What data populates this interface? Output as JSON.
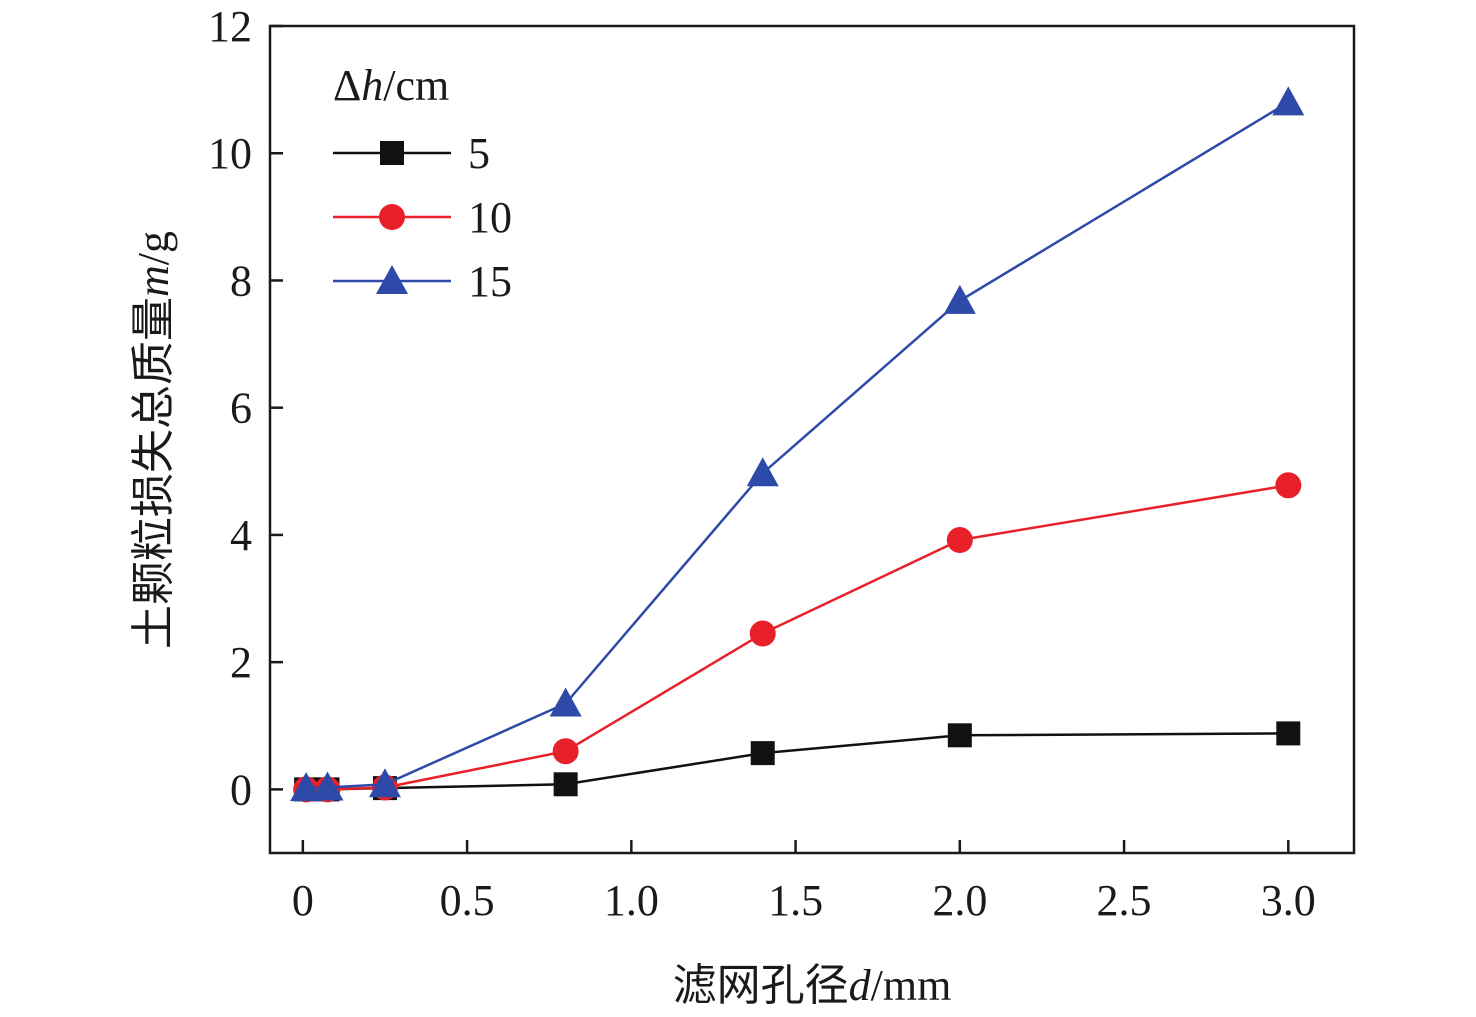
{
  "chart_data": {
    "type": "line",
    "title": "",
    "xlabel_prefix": "滤网孔径",
    "xlabel_var": "d",
    "xlabel_unit": "/mm",
    "ylabel_prefix": "土颗粒损失总质量",
    "ylabel_var": "m",
    "ylabel_unit": "/g",
    "xlim": [
      -0.1,
      3.2
    ],
    "ylim": [
      -1,
      12
    ],
    "xticks": [
      0,
      0.5,
      1.0,
      1.5,
      2.0,
      2.5,
      3.0
    ],
    "xtick_labels": [
      "0",
      "0.5",
      "1.0",
      "1.5",
      "2.0",
      "2.5",
      "3.0"
    ],
    "yticks": [
      0,
      2,
      4,
      6,
      8,
      10,
      12
    ],
    "ytick_labels": [
      "0",
      "2",
      "4",
      "6",
      "8",
      "10",
      "12"
    ],
    "grid": false,
    "legend_position": "top-left",
    "legend_title_delta": "Δ",
    "legend_title_var": "h",
    "legend_title_unit": "/cm",
    "x": [
      0.01,
      0.075,
      0.25,
      0.8,
      1.4,
      2.0,
      3.0
    ],
    "series": [
      {
        "name": "5",
        "marker": "square",
        "color": "#111111",
        "values": [
          0.0,
          0.0,
          0.02,
          0.08,
          0.57,
          0.85,
          0.88
        ]
      },
      {
        "name": "10",
        "marker": "circle",
        "color": "#e8202a",
        "values": [
          0.0,
          0.0,
          0.03,
          0.6,
          2.45,
          3.92,
          4.78
        ]
      },
      {
        "name": "15",
        "marker": "triangle",
        "color": "#2e4aa8",
        "values": [
          0.02,
          0.03,
          0.08,
          1.35,
          4.97,
          7.68,
          10.8
        ]
      }
    ]
  }
}
